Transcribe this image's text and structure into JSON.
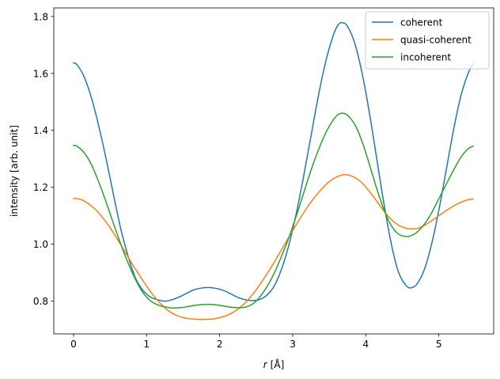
{
  "chart_data": {
    "type": "line",
    "title": "",
    "xlabel_var": "r",
    "xlabel_unit": "[Å]",
    "ylabel": "intensity [arb. unit]",
    "xlim": [
      -0.27,
      5.75
    ],
    "ylim": [
      0.685,
      1.83
    ],
    "xticks": [
      0,
      1,
      2,
      3,
      4,
      5
    ],
    "xtick_labels": [
      "0",
      "1",
      "2",
      "3",
      "4",
      "5"
    ],
    "yticks": [
      0.8,
      1.0,
      1.2,
      1.4,
      1.6,
      1.8
    ],
    "ytick_labels": [
      "0.8",
      "1.0",
      "1.2",
      "1.4",
      "1.6",
      "1.8"
    ],
    "grid": false,
    "legend_position": "top-right",
    "series": [
      {
        "name": "coherent",
        "color": "#1f77b4",
        "points": [
          [
            0,
            1.637
          ],
          [
            0.05,
            1.63
          ],
          [
            0.15,
            1.585
          ],
          [
            0.25,
            1.51
          ],
          [
            0.35,
            1.41
          ],
          [
            0.45,
            1.295
          ],
          [
            0.55,
            1.17
          ],
          [
            0.65,
            1.05
          ],
          [
            0.75,
            0.955
          ],
          [
            0.85,
            0.88
          ],
          [
            0.95,
            0.838
          ],
          [
            1.05,
            0.815
          ],
          [
            1.15,
            0.805
          ],
          [
            1.25,
            0.8
          ],
          [
            1.35,
            0.805
          ],
          [
            1.45,
            0.815
          ],
          [
            1.55,
            0.828
          ],
          [
            1.65,
            0.84
          ],
          [
            1.75,
            0.846
          ],
          [
            1.85,
            0.848
          ],
          [
            1.95,
            0.845
          ],
          [
            2.05,
            0.838
          ],
          [
            2.15,
            0.826
          ],
          [
            2.25,
            0.813
          ],
          [
            2.35,
            0.805
          ],
          [
            2.45,
            0.802
          ],
          [
            2.55,
            0.806
          ],
          [
            2.65,
            0.822
          ],
          [
            2.75,
            0.855
          ],
          [
            2.85,
            0.915
          ],
          [
            2.95,
            1.0
          ],
          [
            3.05,
            1.11
          ],
          [
            3.15,
            1.24
          ],
          [
            3.25,
            1.38
          ],
          [
            3.35,
            1.52
          ],
          [
            3.45,
            1.64
          ],
          [
            3.55,
            1.73
          ],
          [
            3.62,
            1.77
          ],
          [
            3.68,
            1.778
          ],
          [
            3.75,
            1.765
          ],
          [
            3.85,
            1.705
          ],
          [
            3.95,
            1.6
          ],
          [
            4.05,
            1.46
          ],
          [
            4.15,
            1.3
          ],
          [
            4.25,
            1.14
          ],
          [
            4.35,
            1.0
          ],
          [
            4.45,
            0.9
          ],
          [
            4.55,
            0.855
          ],
          [
            4.62,
            0.847
          ],
          [
            4.7,
            0.86
          ],
          [
            4.8,
            0.91
          ],
          [
            4.9,
            1.0
          ],
          [
            5.0,
            1.12
          ],
          [
            5.1,
            1.26
          ],
          [
            5.2,
            1.4
          ],
          [
            5.3,
            1.52
          ],
          [
            5.4,
            1.6
          ],
          [
            5.47,
            1.635
          ]
        ]
      },
      {
        "name": "quasi-coherent",
        "color": "#ff7f0e",
        "points": [
          [
            0,
            1.161
          ],
          [
            0.1,
            1.157
          ],
          [
            0.2,
            1.143
          ],
          [
            0.3,
            1.122
          ],
          [
            0.4,
            1.093
          ],
          [
            0.5,
            1.058
          ],
          [
            0.6,
            1.018
          ],
          [
            0.7,
            0.975
          ],
          [
            0.8,
            0.932
          ],
          [
            0.9,
            0.892
          ],
          [
            1.0,
            0.853
          ],
          [
            1.1,
            0.818
          ],
          [
            1.2,
            0.789
          ],
          [
            1.3,
            0.766
          ],
          [
            1.4,
            0.751
          ],
          [
            1.5,
            0.742
          ],
          [
            1.6,
            0.738
          ],
          [
            1.7,
            0.736
          ],
          [
            1.8,
            0.736
          ],
          [
            1.9,
            0.737
          ],
          [
            2.0,
            0.742
          ],
          [
            2.1,
            0.75
          ],
          [
            2.2,
            0.763
          ],
          [
            2.3,
            0.782
          ],
          [
            2.4,
            0.808
          ],
          [
            2.5,
            0.84
          ],
          [
            2.6,
            0.877
          ],
          [
            2.7,
            0.917
          ],
          [
            2.8,
            0.96
          ],
          [
            2.9,
            1.004
          ],
          [
            3.0,
            1.048
          ],
          [
            3.1,
            1.09
          ],
          [
            3.2,
            1.13
          ],
          [
            3.3,
            1.165
          ],
          [
            3.4,
            1.195
          ],
          [
            3.5,
            1.22
          ],
          [
            3.6,
            1.236
          ],
          [
            3.7,
            1.244
          ],
          [
            3.8,
            1.24
          ],
          [
            3.9,
            1.226
          ],
          [
            4.0,
            1.201
          ],
          [
            4.1,
            1.169
          ],
          [
            4.2,
            1.133
          ],
          [
            4.3,
            1.1
          ],
          [
            4.4,
            1.075
          ],
          [
            4.5,
            1.06
          ],
          [
            4.6,
            1.054
          ],
          [
            4.7,
            1.055
          ],
          [
            4.8,
            1.066
          ],
          [
            4.9,
            1.082
          ],
          [
            5.0,
            1.1
          ],
          [
            5.1,
            1.118
          ],
          [
            5.2,
            1.134
          ],
          [
            5.3,
            1.147
          ],
          [
            5.4,
            1.156
          ],
          [
            5.47,
            1.159
          ]
        ]
      },
      {
        "name": "incoherent",
        "color": "#2ca02c",
        "points": [
          [
            0,
            1.347
          ],
          [
            0.05,
            1.344
          ],
          [
            0.15,
            1.32
          ],
          [
            0.25,
            1.277
          ],
          [
            0.35,
            1.215
          ],
          [
            0.45,
            1.145
          ],
          [
            0.55,
            1.07
          ],
          [
            0.65,
            0.998
          ],
          [
            0.75,
            0.932
          ],
          [
            0.85,
            0.875
          ],
          [
            0.95,
            0.83
          ],
          [
            1.05,
            0.802
          ],
          [
            1.15,
            0.787
          ],
          [
            1.25,
            0.78
          ],
          [
            1.35,
            0.776
          ],
          [
            1.45,
            0.777
          ],
          [
            1.55,
            0.78
          ],
          [
            1.65,
            0.785
          ],
          [
            1.75,
            0.788
          ],
          [
            1.85,
            0.789
          ],
          [
            1.95,
            0.787
          ],
          [
            2.05,
            0.783
          ],
          [
            2.15,
            0.779
          ],
          [
            2.25,
            0.777
          ],
          [
            2.35,
            0.779
          ],
          [
            2.45,
            0.79
          ],
          [
            2.55,
            0.815
          ],
          [
            2.65,
            0.852
          ],
          [
            2.75,
            0.9
          ],
          [
            2.85,
            0.96
          ],
          [
            2.95,
            1.025
          ],
          [
            3.05,
            1.1
          ],
          [
            3.15,
            1.18
          ],
          [
            3.25,
            1.26
          ],
          [
            3.35,
            1.33
          ],
          [
            3.45,
            1.39
          ],
          [
            3.55,
            1.435
          ],
          [
            3.62,
            1.455
          ],
          [
            3.68,
            1.46
          ],
          [
            3.75,
            1.453
          ],
          [
            3.85,
            1.42
          ],
          [
            3.95,
            1.36
          ],
          [
            4.05,
            1.28
          ],
          [
            4.15,
            1.195
          ],
          [
            4.25,
            1.12
          ],
          [
            4.35,
            1.065
          ],
          [
            4.45,
            1.035
          ],
          [
            4.55,
            1.027
          ],
          [
            4.62,
            1.03
          ],
          [
            4.7,
            1.042
          ],
          [
            4.8,
            1.07
          ],
          [
            4.9,
            1.11
          ],
          [
            5.0,
            1.16
          ],
          [
            5.1,
            1.21
          ],
          [
            5.2,
            1.26
          ],
          [
            5.3,
            1.305
          ],
          [
            5.4,
            1.335
          ],
          [
            5.47,
            1.345
          ]
        ]
      }
    ]
  }
}
